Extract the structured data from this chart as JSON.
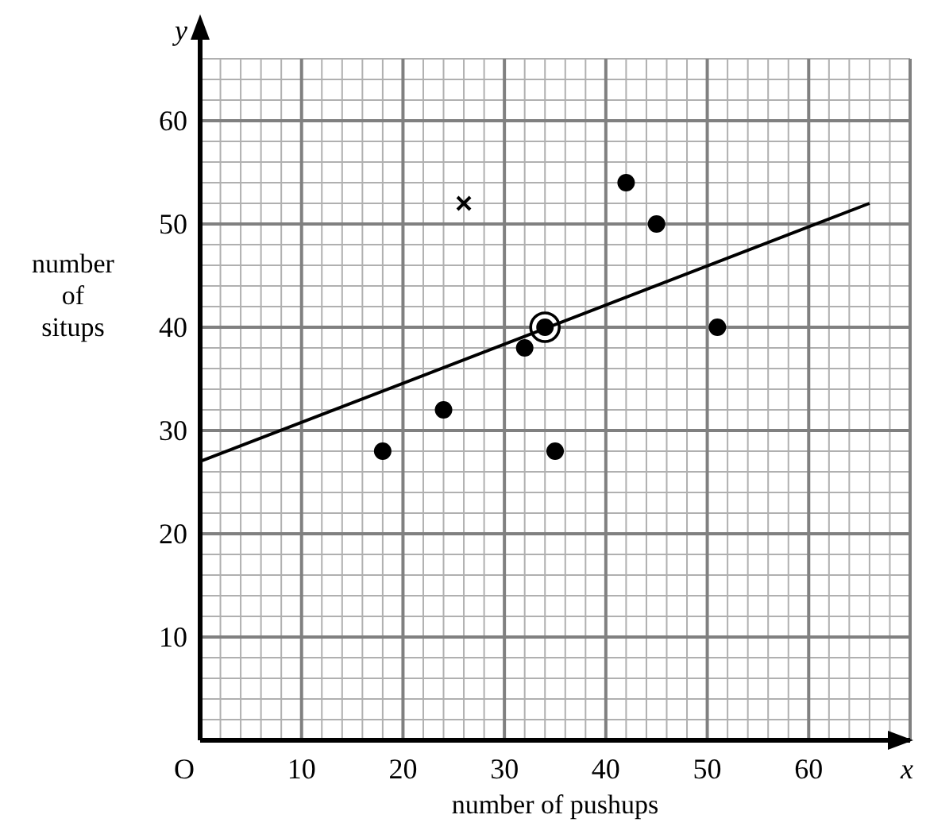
{
  "chart_data": {
    "type": "scatter",
    "xlabel": "number of pushups",
    "ylabel": "number of situps",
    "annotations": [
      "x",
      "y"
    ],
    "xlim": [
      0,
      70
    ],
    "ylim": [
      0,
      66
    ],
    "xticks": [
      {
        "value": 0,
        "label": "O"
      },
      10,
      20,
      30,
      40,
      50,
      60
    ],
    "yticks": [
      10,
      20,
      30,
      40,
      50,
      60
    ],
    "grid": true,
    "series": [
      {
        "marker": "circle",
        "color": "#000000",
        "x": [
          18,
          24,
          32,
          35,
          42,
          45,
          51
        ],
        "values": [
          28,
          32,
          38,
          28,
          54,
          50,
          40
        ]
      },
      {
        "marker": "circle",
        "color": "#000000",
        "x": [
          34
        ],
        "values": [
          40
        ]
      },
      {
        "marker": "cross",
        "color": "#000000",
        "x": [
          26
        ],
        "values": [
          52
        ]
      },
      {
        "type": "line",
        "line_style": "solid",
        "color": "#000000",
        "x": [
          0,
          66
        ],
        "values": [
          27,
          52
        ]
      }
    ]
  }
}
